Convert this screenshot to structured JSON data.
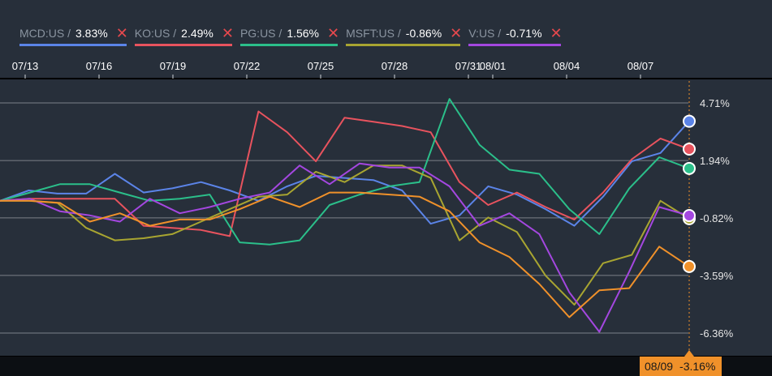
{
  "legend": [
    {
      "symbol": "MCD:US /",
      "value": "3.83%",
      "color": "#5b84e8",
      "close": "✕"
    },
    {
      "symbol": "KO:US /",
      "value": "2.49%",
      "color": "#e8535e",
      "close": "✕"
    },
    {
      "symbol": "PG:US /",
      "value": "1.56%",
      "color": "#2bbf8a",
      "close": "✕"
    },
    {
      "symbol": "MSFT:US /",
      "value": "-0.86%",
      "color": "#a8a531",
      "close": "✕"
    },
    {
      "symbol": "V:US /",
      "value": "-0.71%",
      "color": "#a447e0",
      "close": "✕"
    }
  ],
  "crosshair": {
    "date": "08/09",
    "value": "-3.16%"
  },
  "chart_data": {
    "type": "line",
    "x_ticks": [
      "07/13",
      "07/16",
      "07/19",
      "07/22",
      "07/25",
      "07/28",
      "07/31",
      "08/01",
      "08/04",
      "08/07"
    ],
    "y_ticks": [
      "4.71%",
      "1.94%",
      "-0.82%",
      "-3.59%",
      "-6.36%"
    ],
    "ylim": [
      -6.36,
      4.71
    ],
    "grid": true,
    "series": [
      {
        "name": "MCD:US",
        "color": "#5b84e8",
        "values": [
          0.0,
          0.5,
          0.35,
          0.35,
          1.3,
          0.4,
          0.6,
          0.9,
          0.5,
          0.0,
          0.7,
          1.2,
          1.1,
          1.0,
          0.5,
          -1.1,
          -0.7,
          0.7,
          0.3,
          -0.4,
          -1.2,
          0.2,
          1.9,
          2.3,
          3.83
        ]
      },
      {
        "name": "KO:US",
        "color": "#e8535e",
        "values": [
          0.0,
          0.1,
          0.1,
          0.1,
          0.1,
          -1.2,
          -1.3,
          -1.4,
          -1.7,
          4.3,
          3.3,
          1.9,
          4.0,
          3.8,
          3.6,
          3.3,
          0.9,
          -0.2,
          0.4,
          -0.3,
          -0.9,
          0.4,
          2.0,
          3.0,
          2.49
        ]
      },
      {
        "name": "PG:US",
        "color": "#2bbf8a",
        "values": [
          0.0,
          0.4,
          0.8,
          0.8,
          0.4,
          0.0,
          0.1,
          0.3,
          -2.0,
          -2.1,
          -1.9,
          -0.2,
          0.3,
          0.7,
          0.9,
          4.9,
          2.7,
          1.5,
          1.3,
          -0.4,
          -1.6,
          0.6,
          2.1,
          1.56
        ]
      },
      {
        "name": "MSFT:US",
        "color": "#a8a531",
        "values": [
          0.0,
          0.0,
          -0.1,
          -1.3,
          -1.9,
          -1.8,
          -1.6,
          -1.0,
          -0.4,
          0.2,
          0.3,
          1.4,
          0.9,
          1.7,
          1.7,
          1.1,
          -1.9,
          -0.8,
          -1.5,
          -3.6,
          -5.0,
          -3.0,
          -2.6,
          0.0,
          -0.86
        ]
      },
      {
        "name": "V:US",
        "color": "#a447e0",
        "values": [
          0.0,
          0.1,
          -0.5,
          -0.7,
          -1.0,
          0.1,
          -0.6,
          -0.3,
          0.1,
          0.4,
          1.7,
          0.8,
          1.8,
          1.6,
          1.6,
          0.7,
          -1.2,
          -0.6,
          -1.6,
          -4.4,
          -6.3,
          -3.4,
          -0.3,
          -0.71
        ]
      },
      {
        "name": "",
        "color": "#f0912a",
        "values": [
          0.0,
          0.0,
          -0.1,
          -1.0,
          -0.6,
          -1.2,
          -0.9,
          -0.9,
          -0.4,
          0.2,
          -0.3,
          0.4,
          0.4,
          0.3,
          0.2,
          -0.5,
          -2.0,
          -2.7,
          -4.0,
          -5.6,
          -4.3,
          -4.2,
          -2.2,
          -3.16
        ]
      }
    ]
  }
}
